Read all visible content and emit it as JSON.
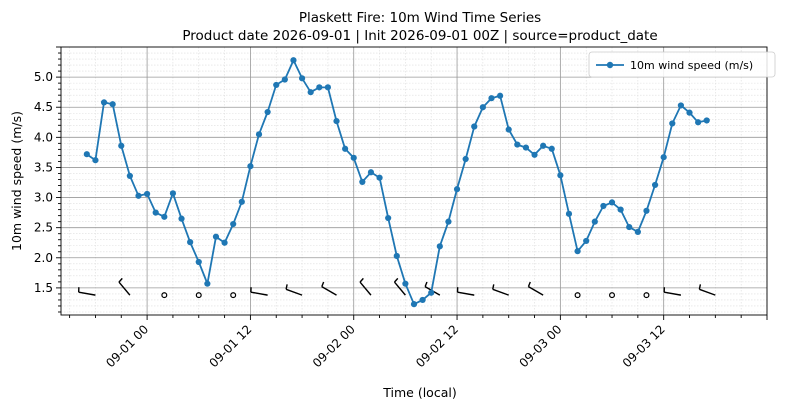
{
  "chart_data": {
    "type": "line",
    "title": "Plaskett Fire: 10m Wind Time Series",
    "subtitle": "Product date 2026-09-01 | Init 2026-09-01 00Z | source=product_date",
    "xlabel": "Time (local)",
    "ylabel": "10m wind speed (m/s)",
    "x_tick_labels": [
      "09-01 00",
      "09-01 12",
      "09-02 00",
      "09-02 12",
      "09-03 00",
      "09-03 12"
    ],
    "x_tick_hours": [
      0,
      12,
      24,
      36,
      48,
      60
    ],
    "y_ticks": [
      "1.5",
      "2.0",
      "2.5",
      "3.0",
      "3.5",
      "4.0",
      "4.5",
      "5.0"
    ],
    "xlim_hours": [
      -10,
      72
    ],
    "ylim": [
      1.05,
      5.5
    ],
    "grid": true,
    "legend_position": "top-right",
    "colors": {
      "series": "#1f77b4",
      "grid_major": "#999999",
      "grid_minor": "#dddddd"
    },
    "series": [
      {
        "name": "10m wind speed (m/s)",
        "x_hours": [
          -7,
          -6,
          -5,
          -4,
          -3,
          -2,
          -1,
          0,
          1,
          2,
          3,
          4,
          5,
          6,
          7,
          8,
          9,
          10,
          11,
          12,
          13,
          14,
          15,
          16,
          17,
          18,
          19,
          20,
          21,
          22,
          23,
          24,
          25,
          26,
          27,
          28,
          29,
          30,
          31,
          32,
          33,
          34,
          35,
          36,
          37,
          38,
          39,
          40,
          41,
          42,
          43,
          44,
          45,
          46,
          47,
          48,
          49,
          50,
          51,
          52,
          53,
          54,
          55,
          56,
          57,
          58,
          59,
          60,
          61,
          62,
          63,
          64,
          65
        ],
        "values": [
          3.72,
          3.62,
          4.58,
          4.55,
          3.86,
          3.36,
          3.03,
          3.06,
          2.75,
          2.68,
          3.07,
          2.65,
          2.26,
          1.93,
          1.57,
          2.35,
          2.25,
          2.56,
          2.93,
          3.52,
          4.05,
          4.42,
          4.87,
          4.96,
          5.28,
          4.98,
          4.75,
          4.83,
          4.83,
          4.27,
          3.81,
          3.66,
          3.26,
          3.42,
          3.33,
          2.66,
          2.03,
          1.57,
          1.23,
          1.3,
          1.42,
          2.19,
          2.6,
          3.14,
          3.64,
          4.18,
          4.5,
          4.65,
          4.69,
          4.13,
          3.88,
          3.83,
          3.71,
          3.86,
          3.81,
          3.37,
          2.73,
          2.11,
          2.28,
          2.6,
          2.86,
          2.92,
          2.8,
          2.51,
          2.43,
          2.78,
          3.21,
          3.67,
          4.23,
          4.53,
          4.41,
          4.25,
          4.28
        ]
      }
    ],
    "wind_barbs": [
      {
        "hour": -6,
        "type": "barb",
        "dir_deg": 280
      },
      {
        "hour": -2,
        "type": "barb",
        "dir_deg": 320
      },
      {
        "hour": 2,
        "type": "calm"
      },
      {
        "hour": 6,
        "type": "calm"
      },
      {
        "hour": 10,
        "type": "calm"
      },
      {
        "hour": 14,
        "type": "barb",
        "dir_deg": 280
      },
      {
        "hour": 18,
        "type": "barb",
        "dir_deg": 290
      },
      {
        "hour": 22,
        "type": "barb",
        "dir_deg": 300
      },
      {
        "hour": 26,
        "type": "barb",
        "dir_deg": 320
      },
      {
        "hour": 30,
        "type": "barb",
        "dir_deg": 320
      },
      {
        "hour": 34,
        "type": "barb",
        "dir_deg": 300
      },
      {
        "hour": 38,
        "type": "barb",
        "dir_deg": 280
      },
      {
        "hour": 42,
        "type": "barb",
        "dir_deg": 290
      },
      {
        "hour": 46,
        "type": "barb",
        "dir_deg": 300
      },
      {
        "hour": 50,
        "type": "calm"
      },
      {
        "hour": 54,
        "type": "calm"
      },
      {
        "hour": 58,
        "type": "calm"
      },
      {
        "hour": 62,
        "type": "barb",
        "dir_deg": 280
      },
      {
        "hour": 66,
        "type": "barb",
        "dir_deg": 290
      }
    ]
  }
}
